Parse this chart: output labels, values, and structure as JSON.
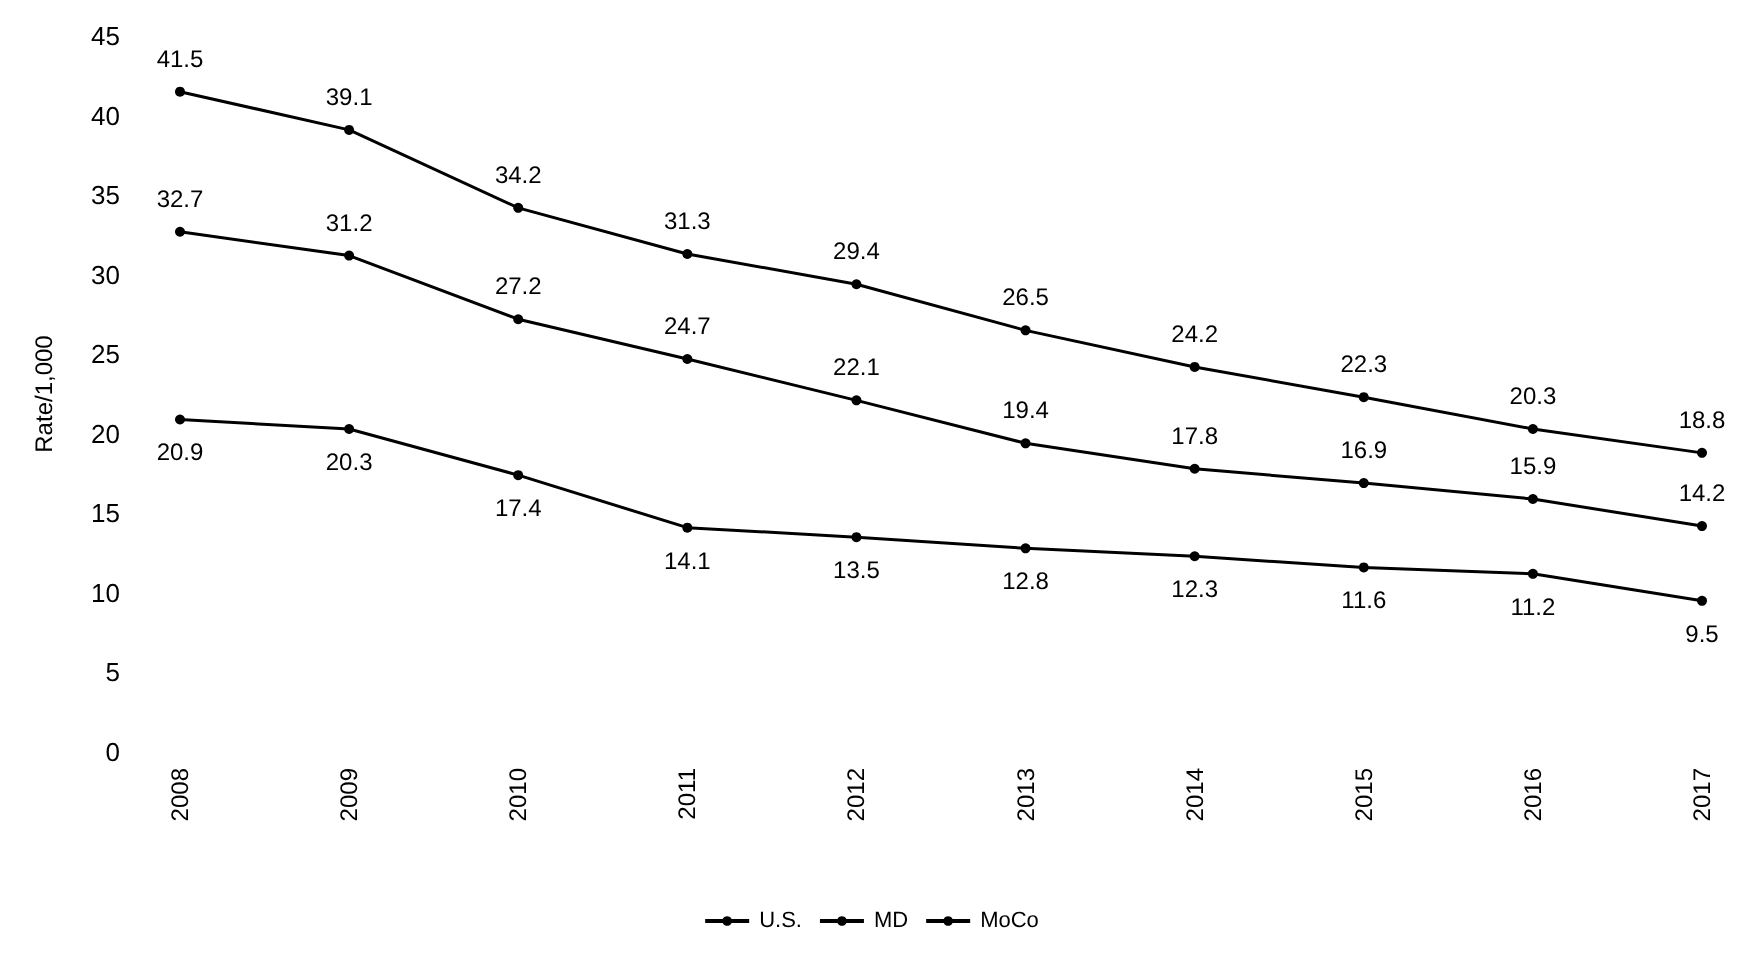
{
  "chart_data": {
    "type": "line",
    "ylabel": "Rate/1,000",
    "categories": [
      "2008",
      "2009",
      "2010",
      "2011",
      "2012",
      "2013",
      "2014",
      "2015",
      "2016",
      "2017"
    ],
    "series": [
      {
        "name": "U.S.",
        "color": "#000000",
        "values": [
          41.5,
          39.1,
          34.2,
          31.3,
          29.4,
          26.5,
          24.2,
          22.3,
          20.3,
          18.8
        ]
      },
      {
        "name": "MD",
        "color": "#000000",
        "values": [
          32.7,
          31.2,
          27.2,
          24.7,
          22.1,
          19.4,
          17.8,
          16.9,
          15.9,
          14.2
        ]
      },
      {
        "name": "MoCo",
        "color": "#000000",
        "values": [
          20.9,
          20.3,
          17.4,
          14.1,
          13.5,
          12.8,
          12.3,
          11.6,
          11.2,
          9.5
        ]
      }
    ],
    "ylim": [
      0,
      45
    ],
    "yticks": [
      0,
      5,
      10,
      15,
      20,
      25,
      30,
      35,
      40,
      45
    ],
    "grid": false,
    "legend": "bottom",
    "marker": "circle",
    "line_style": "solid",
    "data_labels": true
  }
}
